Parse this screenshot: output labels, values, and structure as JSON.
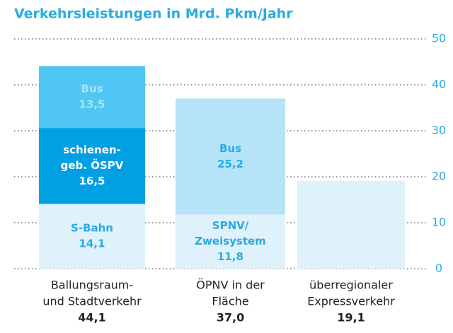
{
  "chart_data": {
    "type": "stacked-bar",
    "title": "Verkehrsleistungen in Mrd. Pkm/Jahr",
    "categories": [
      [
        "Ballungsraum-",
        "und Stadtverkehr"
      ],
      [
        "ÖPNV in der",
        "Fläche"
      ],
      [
        "überregionaler",
        "Expressverkehr"
      ]
    ],
    "total_labels": [
      "44,1",
      "37,0",
      "19,1"
    ],
    "stacks": [
      [
        {
          "name": [
            "S-Bahn"
          ],
          "value": 14.1,
          "value_label": "14,1",
          "color": "#dff2fb",
          "label_color": "#29abe2"
        },
        {
          "name": [
            "schienen-",
            "geb. ÖSPV"
          ],
          "value": 16.5,
          "value_label": "16,5",
          "color": "#00a0e3",
          "label_color": "#ffffff"
        },
        {
          "name": [
            "Bus"
          ],
          "value": 13.5,
          "value_label": "13,5",
          "color": "#4fc6f3",
          "label_color": "#a9e3f9"
        }
      ],
      [
        {
          "name": [
            "SPNV/",
            "Zweisystem"
          ],
          "value": 11.8,
          "value_label": "11,8",
          "color": "#dff2fb",
          "label_color": "#29abe2"
        },
        {
          "name": [
            "Bus"
          ],
          "value": 25.2,
          "value_label": "25,2",
          "color": "#b5e3f7",
          "label_color": "#29abe2"
        }
      ],
      [
        {
          "value": 19.1,
          "color": "#dff2fb"
        }
      ]
    ],
    "ylim": [
      0,
      50
    ],
    "yticks": [
      0,
      10,
      20,
      30,
      40,
      50
    ],
    "grid": true,
    "axis_side": "right"
  }
}
